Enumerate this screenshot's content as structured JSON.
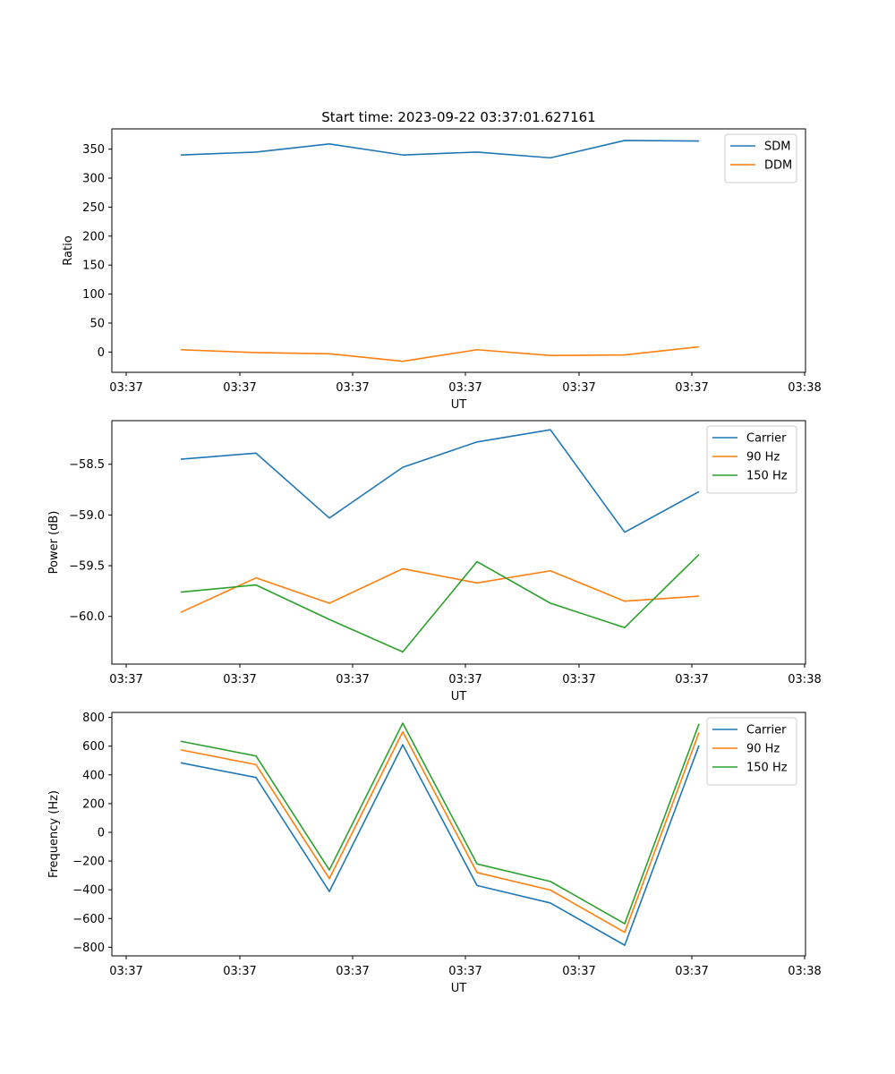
{
  "chart_data": [
    {
      "type": "line",
      "title": "Start time: 2023-09-22 03:37:01.627161",
      "xlabel": "UT",
      "ylabel": "Ratio",
      "x_ticks": [
        "03:37",
        "03:37",
        "03:37",
        "03:37",
        "03:37",
        "03:37",
        "03:38"
      ],
      "y_ticks": [
        0,
        50,
        100,
        150,
        200,
        250,
        300,
        350
      ],
      "ylim": [
        -35,
        385
      ],
      "legend_position": "top-right",
      "series": [
        {
          "name": "SDM",
          "color": "#1f77b4",
          "values": [
            340,
            345,
            359,
            340,
            345,
            335,
            365,
            364
          ]
        },
        {
          "name": "DDM",
          "color": "#ff7f0e",
          "values": [
            4,
            -1,
            -3,
            -16,
            4,
            -6,
            -5,
            9
          ]
        }
      ]
    },
    {
      "type": "line",
      "title": "",
      "xlabel": "UT",
      "ylabel": "Power (dB)",
      "x_ticks": [
        "03:37",
        "03:37",
        "03:37",
        "03:37",
        "03:37",
        "03:37",
        "03:38"
      ],
      "y_ticks": [
        -58.5,
        -59.0,
        -59.5,
        -60.0
      ],
      "y_tick_labels": [
        "−58.5",
        "−59.0",
        "−59.5",
        "−60.0"
      ],
      "ylim": [
        -60.47,
        -58.07
      ],
      "legend_position": "top-right",
      "series": [
        {
          "name": "Carrier",
          "color": "#1f77b4",
          "values": [
            -58.45,
            -58.39,
            -59.03,
            -58.53,
            -58.28,
            -58.16,
            -59.17,
            -58.77
          ]
        },
        {
          "name": "90 Hz",
          "color": "#ff7f0e",
          "values": [
            -59.96,
            -59.62,
            -59.87,
            -59.53,
            -59.67,
            -59.55,
            -59.85,
            -59.8
          ]
        },
        {
          "name": "150 Hz",
          "color": "#2ca02c",
          "values": [
            -59.76,
            -59.69,
            -60.03,
            -60.35,
            -59.46,
            -59.87,
            -60.11,
            -59.39
          ]
        }
      ]
    },
    {
      "type": "line",
      "title": "",
      "xlabel": "UT",
      "ylabel": "Frequency (Hz)",
      "x_ticks": [
        "03:37",
        "03:37",
        "03:37",
        "03:37",
        "03:37",
        "03:37",
        "03:38"
      ],
      "y_ticks": [
        800,
        600,
        400,
        200,
        0,
        -200,
        -400,
        -600,
        -800
      ],
      "y_tick_labels": [
        "800",
        "600",
        "400",
        "200",
        "0",
        "−200",
        "−400",
        "−600",
        "−800"
      ],
      "ylim": [
        -860,
        835
      ],
      "legend_position": "top-right",
      "series": [
        {
          "name": "Carrier",
          "color": "#1f77b4",
          "values": [
            484,
            382,
            -412,
            610,
            -370,
            -492,
            -786,
            605
          ]
        },
        {
          "name": "90 Hz",
          "color": "#ff7f0e",
          "values": [
            574,
            472,
            -322,
            700,
            -280,
            -402,
            -696,
            695
          ]
        },
        {
          "name": "150 Hz",
          "color": "#2ca02c",
          "values": [
            634,
            532,
            -262,
            760,
            -220,
            -342,
            -636,
            755
          ]
        }
      ]
    }
  ]
}
